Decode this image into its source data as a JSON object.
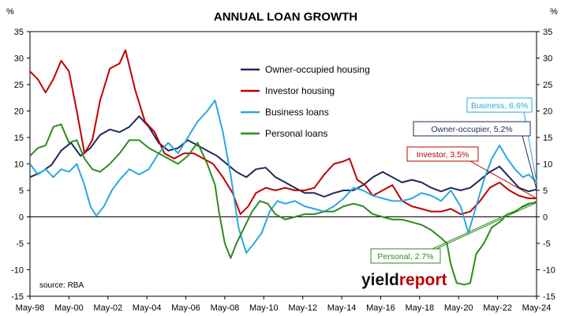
{
  "chart_data": {
    "type": "line",
    "title": "ANNUAL LOAN GROWTH",
    "ylabel_left": "%",
    "ylabel_right": "%",
    "ylim": [
      -15,
      35
    ],
    "yticks": [
      35,
      30,
      25,
      20,
      15,
      10,
      5,
      0,
      -5,
      -10,
      -15
    ],
    "x_ticks": [
      "May-98",
      "May-00",
      "May-02",
      "May-04",
      "May-06",
      "May-08",
      "May-10",
      "May-12",
      "May-14",
      "May-16",
      "May-18",
      "May-20",
      "May-22",
      "May-24"
    ],
    "x_range": [
      1998.4,
      2024.4
    ],
    "grid": false,
    "legend_position": "upper-center",
    "source": "source: RBA",
    "logo": {
      "word1": "yield",
      "word2": "report"
    },
    "series": [
      {
        "name": "Owner-occupied housing",
        "color": "#1f2a5c",
        "points": [
          [
            1998.4,
            7.5
          ],
          [
            1999.0,
            8.5
          ],
          [
            1999.5,
            9.8
          ],
          [
            2000.0,
            12.5
          ],
          [
            2000.5,
            14.0
          ],
          [
            2001.0,
            11.5
          ],
          [
            2001.5,
            13.0
          ],
          [
            2002.0,
            15.5
          ],
          [
            2002.5,
            16.5
          ],
          [
            2003.0,
            16.0
          ],
          [
            2003.5,
            17.0
          ],
          [
            2004.0,
            19.0
          ],
          [
            2004.5,
            17.0
          ],
          [
            2005.0,
            14.0
          ],
          [
            2005.5,
            12.5
          ],
          [
            2006.0,
            13.0
          ],
          [
            2006.5,
            14.5
          ],
          [
            2007.0,
            13.5
          ],
          [
            2007.5,
            12.5
          ],
          [
            2008.0,
            11.5
          ],
          [
            2008.5,
            10.0
          ],
          [
            2009.0,
            8.5
          ],
          [
            2009.5,
            7.5
          ],
          [
            2010.0,
            9.0
          ],
          [
            2010.5,
            9.3
          ],
          [
            2011.0,
            7.5
          ],
          [
            2011.5,
            6.5
          ],
          [
            2012.0,
            5.5
          ],
          [
            2012.5,
            4.5
          ],
          [
            2013.0,
            4.5
          ],
          [
            2013.5,
            3.8
          ],
          [
            2014.0,
            4.5
          ],
          [
            2014.5,
            5.0
          ],
          [
            2015.0,
            5.0
          ],
          [
            2015.5,
            6.0
          ],
          [
            2016.0,
            7.5
          ],
          [
            2016.5,
            8.5
          ],
          [
            2017.0,
            7.5
          ],
          [
            2017.5,
            6.5
          ],
          [
            2018.0,
            7.0
          ],
          [
            2018.5,
            6.5
          ],
          [
            2019.0,
            5.5
          ],
          [
            2019.5,
            4.8
          ],
          [
            2020.0,
            5.5
          ],
          [
            2020.5,
            5.0
          ],
          [
            2021.0,
            5.5
          ],
          [
            2021.5,
            7.0
          ],
          [
            2022.0,
            8.5
          ],
          [
            2022.5,
            9.5
          ],
          [
            2023.0,
            7.5
          ],
          [
            2023.5,
            5.5
          ],
          [
            2024.0,
            4.8
          ],
          [
            2024.4,
            5.2
          ]
        ]
      },
      {
        "name": "Investor housing",
        "color": "#c00000",
        "points": [
          [
            1998.4,
            27.5
          ],
          [
            1998.8,
            26.0
          ],
          [
            1999.2,
            23.5
          ],
          [
            1999.6,
            26.0
          ],
          [
            2000.0,
            29.5
          ],
          [
            2000.4,
            27.5
          ],
          [
            2000.8,
            20.0
          ],
          [
            2001.2,
            12.0
          ],
          [
            2001.6,
            14.5
          ],
          [
            2002.0,
            22.0
          ],
          [
            2002.5,
            28.0
          ],
          [
            2003.0,
            29.0
          ],
          [
            2003.3,
            31.5
          ],
          [
            2003.8,
            24.0
          ],
          [
            2004.3,
            18.0
          ],
          [
            2004.8,
            16.0
          ],
          [
            2005.3,
            12.0
          ],
          [
            2005.8,
            11.0
          ],
          [
            2006.3,
            12.0
          ],
          [
            2006.8,
            12.0
          ],
          [
            2007.3,
            11.0
          ],
          [
            2007.8,
            10.0
          ],
          [
            2008.3,
            7.5
          ],
          [
            2008.8,
            4.5
          ],
          [
            2009.2,
            0.5
          ],
          [
            2009.6,
            2.0
          ],
          [
            2010.0,
            4.5
          ],
          [
            2010.5,
            5.5
          ],
          [
            2011.0,
            5.0
          ],
          [
            2011.5,
            5.5
          ],
          [
            2012.0,
            5.0
          ],
          [
            2012.5,
            5.0
          ],
          [
            2013.0,
            5.5
          ],
          [
            2013.5,
            8.0
          ],
          [
            2014.0,
            10.0
          ],
          [
            2014.5,
            10.5
          ],
          [
            2014.8,
            11.0
          ],
          [
            2015.2,
            7.0
          ],
          [
            2015.6,
            6.0
          ],
          [
            2016.0,
            4.0
          ],
          [
            2016.5,
            5.0
          ],
          [
            2017.0,
            6.0
          ],
          [
            2017.5,
            3.0
          ],
          [
            2018.0,
            2.0
          ],
          [
            2018.5,
            1.5
          ],
          [
            2019.0,
            1.0
          ],
          [
            2019.5,
            1.0
          ],
          [
            2020.0,
            1.5
          ],
          [
            2020.5,
            0.5
          ],
          [
            2021.0,
            1.0
          ],
          [
            2021.5,
            3.0
          ],
          [
            2022.0,
            5.5
          ],
          [
            2022.5,
            6.5
          ],
          [
            2023.0,
            5.0
          ],
          [
            2023.5,
            4.0
          ],
          [
            2024.0,
            3.5
          ],
          [
            2024.4,
            3.5
          ]
        ]
      },
      {
        "name": "Business loans",
        "color": "#2aa8e0",
        "points": [
          [
            1998.4,
            10.0
          ],
          [
            1998.8,
            8.0
          ],
          [
            1999.2,
            9.0
          ],
          [
            1999.6,
            7.5
          ],
          [
            2000.0,
            9.0
          ],
          [
            2000.4,
            8.5
          ],
          [
            2000.8,
            10.0
          ],
          [
            2001.2,
            6.0
          ],
          [
            2001.5,
            2.0
          ],
          [
            2001.8,
            0.2
          ],
          [
            2002.2,
            2.0
          ],
          [
            2002.6,
            5.0
          ],
          [
            2003.0,
            7.0
          ],
          [
            2003.5,
            9.0
          ],
          [
            2004.0,
            8.0
          ],
          [
            2004.5,
            9.0
          ],
          [
            2005.0,
            12.0
          ],
          [
            2005.5,
            14.0
          ],
          [
            2006.0,
            12.0
          ],
          [
            2006.5,
            15.0
          ],
          [
            2007.0,
            18.0
          ],
          [
            2007.5,
            20.0
          ],
          [
            2007.9,
            22.0
          ],
          [
            2008.3,
            16.0
          ],
          [
            2008.7,
            8.0
          ],
          [
            2009.1,
            -2.0
          ],
          [
            2009.5,
            -6.8
          ],
          [
            2009.9,
            -5.0
          ],
          [
            2010.3,
            -3.0
          ],
          [
            2010.7,
            1.0
          ],
          [
            2011.1,
            3.0
          ],
          [
            2011.5,
            2.5
          ],
          [
            2012.0,
            3.0
          ],
          [
            2012.5,
            2.0
          ],
          [
            2013.0,
            1.5
          ],
          [
            2013.5,
            1.0
          ],
          [
            2014.0,
            2.0
          ],
          [
            2014.5,
            3.5
          ],
          [
            2015.0,
            5.5
          ],
          [
            2015.5,
            5.0
          ],
          [
            2016.0,
            4.0
          ],
          [
            2016.5,
            3.5
          ],
          [
            2017.0,
            3.0
          ],
          [
            2017.5,
            3.0
          ],
          [
            2018.0,
            3.5
          ],
          [
            2018.5,
            4.5
          ],
          [
            2019.0,
            4.0
          ],
          [
            2019.5,
            3.0
          ],
          [
            2020.0,
            5.0
          ],
          [
            2020.5,
            2.0
          ],
          [
            2020.9,
            -3.0
          ],
          [
            2021.3,
            2.0
          ],
          [
            2021.7,
            7.0
          ],
          [
            2022.1,
            11.0
          ],
          [
            2022.5,
            13.5
          ],
          [
            2022.9,
            11.0
          ],
          [
            2023.3,
            9.0
          ],
          [
            2023.7,
            7.5
          ],
          [
            2024.0,
            8.0
          ],
          [
            2024.4,
            6.6
          ]
        ]
      },
      {
        "name": "Personal loans",
        "color": "#2e8b1e",
        "points": [
          [
            1998.4,
            11.5
          ],
          [
            1998.8,
            13.0
          ],
          [
            1999.2,
            13.5
          ],
          [
            1999.6,
            17.0
          ],
          [
            2000.0,
            17.5
          ],
          [
            2000.4,
            14.0
          ],
          [
            2000.8,
            14.5
          ],
          [
            2001.2,
            11.0
          ],
          [
            2001.6,
            9.0
          ],
          [
            2002.0,
            8.5
          ],
          [
            2002.5,
            10.0
          ],
          [
            2003.0,
            12.0
          ],
          [
            2003.5,
            14.5
          ],
          [
            2004.0,
            14.5
          ],
          [
            2004.5,
            13.0
          ],
          [
            2005.0,
            12.0
          ],
          [
            2005.5,
            11.0
          ],
          [
            2006.0,
            10.0
          ],
          [
            2006.5,
            11.5
          ],
          [
            2007.0,
            14.0
          ],
          [
            2007.5,
            10.0
          ],
          [
            2007.9,
            6.0
          ],
          [
            2008.1,
            1.0
          ],
          [
            2008.4,
            -5.0
          ],
          [
            2008.7,
            -7.8
          ],
          [
            2009.0,
            -5.0
          ],
          [
            2009.4,
            -2.0
          ],
          [
            2009.8,
            1.0
          ],
          [
            2010.2,
            3.0
          ],
          [
            2010.6,
            2.5
          ],
          [
            2011.0,
            0.5
          ],
          [
            2011.5,
            -0.5
          ],
          [
            2012.0,
            0.0
          ],
          [
            2012.5,
            0.5
          ],
          [
            2013.0,
            0.5
          ],
          [
            2013.5,
            1.0
          ],
          [
            2014.0,
            1.0
          ],
          [
            2014.5,
            2.0
          ],
          [
            2015.0,
            2.5
          ],
          [
            2015.5,
            2.0
          ],
          [
            2016.0,
            0.5
          ],
          [
            2016.5,
            0.0
          ],
          [
            2017.0,
            -0.5
          ],
          [
            2017.5,
            -0.5
          ],
          [
            2018.0,
            -1.0
          ],
          [
            2018.5,
            -1.5
          ],
          [
            2019.0,
            -2.5
          ],
          [
            2019.5,
            -4.0
          ],
          [
            2019.8,
            -5.0
          ],
          [
            2020.0,
            -9.0
          ],
          [
            2020.3,
            -12.5
          ],
          [
            2020.7,
            -12.8
          ],
          [
            2021.0,
            -12.5
          ],
          [
            2021.3,
            -7.0
          ],
          [
            2021.7,
            -5.0
          ],
          [
            2022.1,
            -2.0
          ],
          [
            2022.5,
            -1.0
          ],
          [
            2022.9,
            0.5
          ],
          [
            2023.3,
            1.0
          ],
          [
            2023.7,
            2.0
          ],
          [
            2024.0,
            2.5
          ],
          [
            2024.4,
            2.7
          ]
        ]
      }
    ],
    "annotations": [
      {
        "text": "Business, 6.6%",
        "color": "#2aa8e0",
        "series": "Business loans"
      },
      {
        "text": "Owner-occupier, 5.2%",
        "color": "#1f2a5c",
        "series": "Owner-occupied housing"
      },
      {
        "text": "Investor, 3.5%",
        "color": "#c00000",
        "series": "Investor housing"
      },
      {
        "text": "Personal, 2.7%",
        "color": "#2e8b1e",
        "series": "Personal loans"
      }
    ]
  }
}
